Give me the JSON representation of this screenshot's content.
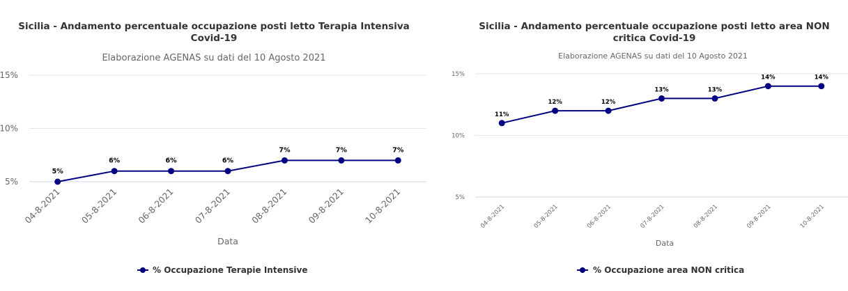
{
  "chart_data": [
    {
      "type": "line",
      "title": "Sicilia - Andamento percentuale occupazione posti letto Terapia Intensiva Covid-19",
      "title_lines": [
        "Sicilia - Andamento percentuale occupazione posti letto Terapia Intensiva",
        "Covid-19"
      ],
      "subtitle": "Elaborazione AGENAS su dati del 10 Agosto 2021",
      "xlabel": "Data",
      "ylabel": "",
      "categories": [
        "04-8-2021",
        "05-8-2021",
        "06-8-2021",
        "07-8-2021",
        "08-8-2021",
        "09-8-2021",
        "10-8-2021"
      ],
      "series": [
        {
          "name": "% Occupazione Terapie Intensive",
          "values": [
            5,
            6,
            6,
            6,
            7,
            7,
            7
          ],
          "color": "#000080"
        }
      ],
      "data_labels": [
        "5%",
        "6%",
        "6%",
        "6%",
        "7%",
        "7%",
        "7%"
      ],
      "y_ticks": [
        5,
        10,
        15
      ],
      "y_tick_labels": [
        "5%",
        "10%",
        "15%"
      ],
      "ylim": [
        5,
        15
      ],
      "grid": true,
      "legend_position": "bottom-center"
    },
    {
      "type": "line",
      "title": "Sicilia - Andamento percentuale occupazione posti letto area NON critica Covid-19",
      "title_lines": [
        "Sicilia - Andamento percentuale occupazione posti letto area NON",
        "critica Covid-19"
      ],
      "subtitle": "Elaborazione AGENAS su dati del 10 Agosto 2021",
      "xlabel": "Data",
      "ylabel": "",
      "categories": [
        "04-8-2021",
        "05-8-2021",
        "06-8-2021",
        "07-8-2021",
        "08-8-2021",
        "09-8-2021",
        "10-8-2021"
      ],
      "series": [
        {
          "name": "% Occupazione area NON critica",
          "values": [
            11,
            12,
            12,
            13,
            13,
            14,
            14
          ],
          "color": "#000080"
        }
      ],
      "data_labels": [
        "11%",
        "12%",
        "12%",
        "13%",
        "13%",
        "14%",
        "14%"
      ],
      "y_ticks": [
        5,
        10,
        15
      ],
      "y_tick_labels": [
        "5%",
        "10%",
        "15%"
      ],
      "ylim": [
        5,
        15
      ],
      "grid": true,
      "legend_position": "bottom-center"
    }
  ],
  "colors": {
    "series": "#000080",
    "grid": "#e6e6e6",
    "axis": "#ccd6eb",
    "title": "#333333",
    "muted": "#666666"
  }
}
